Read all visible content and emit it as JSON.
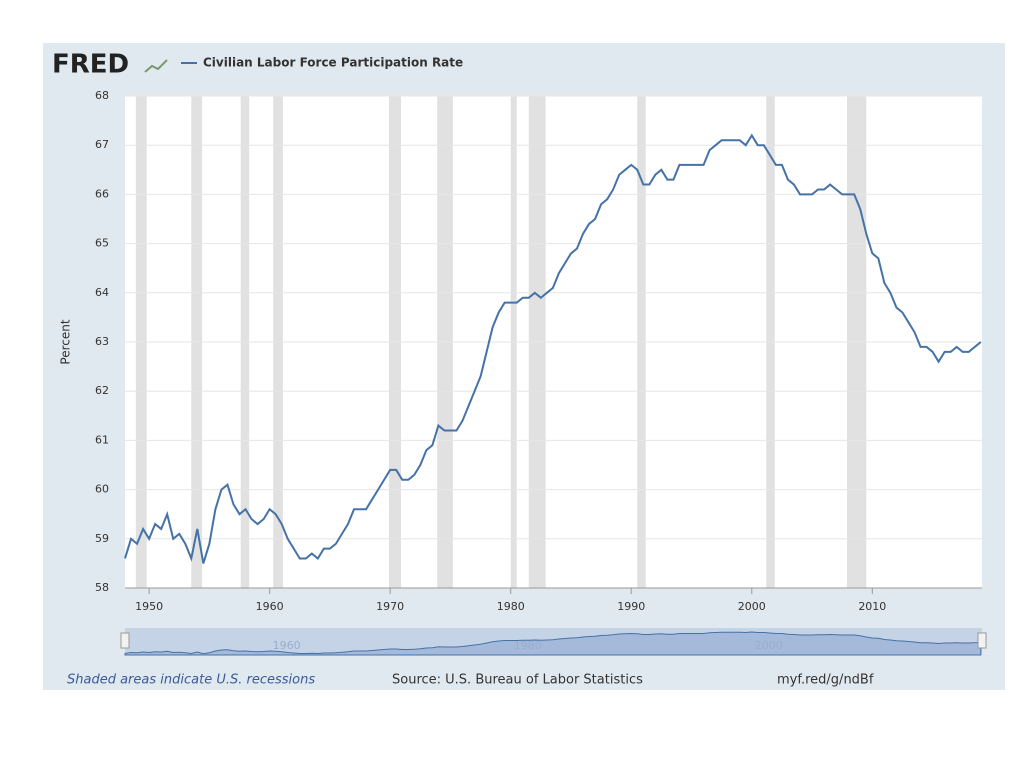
{
  "header": {
    "logo": "FRED"
  },
  "chart_data": {
    "type": "line",
    "y_label": "Percent",
    "xlim": [
      1948,
      2019.1
    ],
    "ylim": [
      58,
      68
    ],
    "xticks": [
      1950,
      1960,
      1970,
      1980,
      1990,
      2000,
      2010
    ],
    "yticks": [
      58,
      59,
      60,
      61,
      62,
      63,
      64,
      65,
      66,
      67,
      68
    ],
    "grid": true,
    "recessions": [
      [
        1948.9,
        1949.8
      ],
      [
        1953.5,
        1954.4
      ],
      [
        1957.6,
        1958.3
      ],
      [
        1960.3,
        1961.1
      ],
      [
        1969.9,
        1970.9
      ],
      [
        1973.9,
        1975.2
      ],
      [
        1980.0,
        1980.5
      ],
      [
        1981.5,
        1982.9
      ],
      [
        1990.5,
        1991.2
      ],
      [
        2001.2,
        2001.9
      ],
      [
        2007.9,
        2009.5
      ]
    ],
    "navigator_ticks": [
      1960,
      1980,
      2000
    ],
    "series": [
      {
        "name": "Civilian Labor Force Participation Rate",
        "color": "#4572a7",
        "x": [
          1948,
          1948.5,
          1949,
          1949.5,
          1950,
          1950.5,
          1951,
          1951.5,
          1952,
          1952.5,
          1953,
          1953.5,
          1954,
          1954.5,
          1955,
          1955.5,
          1956,
          1956.5,
          1957,
          1957.5,
          1958,
          1958.5,
          1959,
          1959.5,
          1960,
          1960.5,
          1961,
          1961.5,
          1962,
          1962.5,
          1963,
          1963.5,
          1964,
          1964.5,
          1965,
          1965.5,
          1966,
          1966.5,
          1967,
          1967.5,
          1968,
          1968.5,
          1969,
          1969.5,
          1970,
          1970.5,
          1971,
          1971.5,
          1972,
          1972.5,
          1973,
          1973.5,
          1974,
          1974.5,
          1975,
          1975.5,
          1976,
          1976.5,
          1977,
          1977.5,
          1978,
          1978.5,
          1979,
          1979.5,
          1980,
          1980.5,
          1981,
          1981.5,
          1982,
          1982.5,
          1983,
          1983.5,
          1984,
          1984.5,
          1985,
          1985.5,
          1986,
          1986.5,
          1987,
          1987.5,
          1988,
          1988.5,
          1989,
          1989.5,
          1990,
          1990.5,
          1991,
          1991.5,
          1992,
          1992.5,
          1993,
          1993.5,
          1994,
          1994.5,
          1995,
          1995.5,
          1996,
          1996.5,
          1997,
          1997.5,
          1998,
          1998.5,
          1999,
          1999.5,
          2000,
          2000.5,
          2001,
          2001.5,
          2002,
          2002.5,
          2003,
          2003.5,
          2004,
          2004.5,
          2005,
          2005.5,
          2006,
          2006.5,
          2007,
          2007.5,
          2008,
          2008.5,
          2009,
          2009.5,
          2010,
          2010.5,
          2011,
          2011.5,
          2012,
          2012.5,
          2013,
          2013.5,
          2014,
          2014.5,
          2015,
          2015.5,
          2016,
          2016.5,
          2017,
          2017.5,
          2018,
          2018.5,
          2019
        ],
        "values": [
          58.6,
          59.0,
          58.9,
          59.2,
          59.0,
          59.3,
          59.2,
          59.5,
          59.0,
          59.1,
          58.9,
          58.6,
          59.2,
          58.5,
          58.9,
          59.6,
          60.0,
          60.1,
          59.7,
          59.5,
          59.6,
          59.4,
          59.3,
          59.4,
          59.6,
          59.5,
          59.3,
          59.0,
          58.8,
          58.6,
          58.6,
          58.7,
          58.6,
          58.8,
          58.8,
          58.9,
          59.1,
          59.3,
          59.6,
          59.6,
          59.6,
          59.8,
          60.0,
          60.2,
          60.4,
          60.4,
          60.2,
          60.2,
          60.3,
          60.5,
          60.8,
          60.9,
          61.3,
          61.2,
          61.2,
          61.2,
          61.4,
          61.7,
          62.0,
          62.3,
          62.8,
          63.3,
          63.6,
          63.8,
          63.8,
          63.8,
          63.9,
          63.9,
          64.0,
          63.9,
          64.0,
          64.1,
          64.4,
          64.6,
          64.8,
          64.9,
          65.2,
          65.4,
          65.5,
          65.8,
          65.9,
          66.1,
          66.4,
          66.5,
          66.6,
          66.5,
          66.2,
          66.2,
          66.4,
          66.5,
          66.3,
          66.3,
          66.6,
          66.6,
          66.6,
          66.6,
          66.6,
          66.9,
          67.0,
          67.1,
          67.1,
          67.1,
          67.1,
          67.0,
          67.2,
          67.0,
          67.0,
          66.8,
          66.6,
          66.6,
          66.3,
          66.2,
          66.0,
          66.0,
          66.0,
          66.1,
          66.1,
          66.2,
          66.1,
          66.0,
          66.0,
          66.0,
          65.7,
          65.2,
          64.8,
          64.7,
          64.2,
          64.0,
          63.7,
          63.6,
          63.4,
          63.2,
          62.9,
          62.9,
          62.8,
          62.6,
          62.8,
          62.8,
          62.9,
          62.8,
          62.8,
          62.9,
          63.0
        ]
      }
    ]
  },
  "footer": {
    "note": "Shaded areas indicate U.S. recessions",
    "source": "Source: U.S. Bureau of Labor Statistics",
    "link": "myf.red/g/ndBf"
  }
}
